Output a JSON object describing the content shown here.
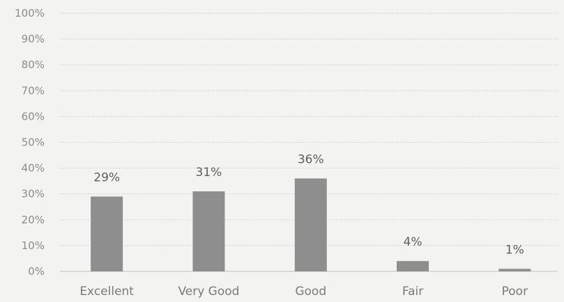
{
  "chart_data": {
    "type": "bar",
    "title": "",
    "xlabel": "",
    "ylabel": "",
    "categories": [
      "Excellent",
      "Very Good",
      "Good",
      "Fair",
      "Poor"
    ],
    "values": [
      29,
      31,
      36,
      4,
      1
    ],
    "data_labels": [
      "29%",
      "31%",
      "36%",
      "4%",
      "1%"
    ],
    "ylim": [
      0,
      100
    ],
    "y_ticks": [
      0,
      10,
      20,
      30,
      40,
      50,
      60,
      70,
      80,
      90,
      100
    ],
    "y_tick_labels": [
      "0%",
      "10%",
      "20%",
      "30%",
      "40%",
      "50%",
      "60%",
      "70%",
      "80%",
      "90%",
      "100%"
    ],
    "grid": true,
    "legend": "none",
    "colors": {
      "bar": "#8e8e8e",
      "background": "#f3f3f1",
      "grid": "#cfcfcf"
    }
  }
}
